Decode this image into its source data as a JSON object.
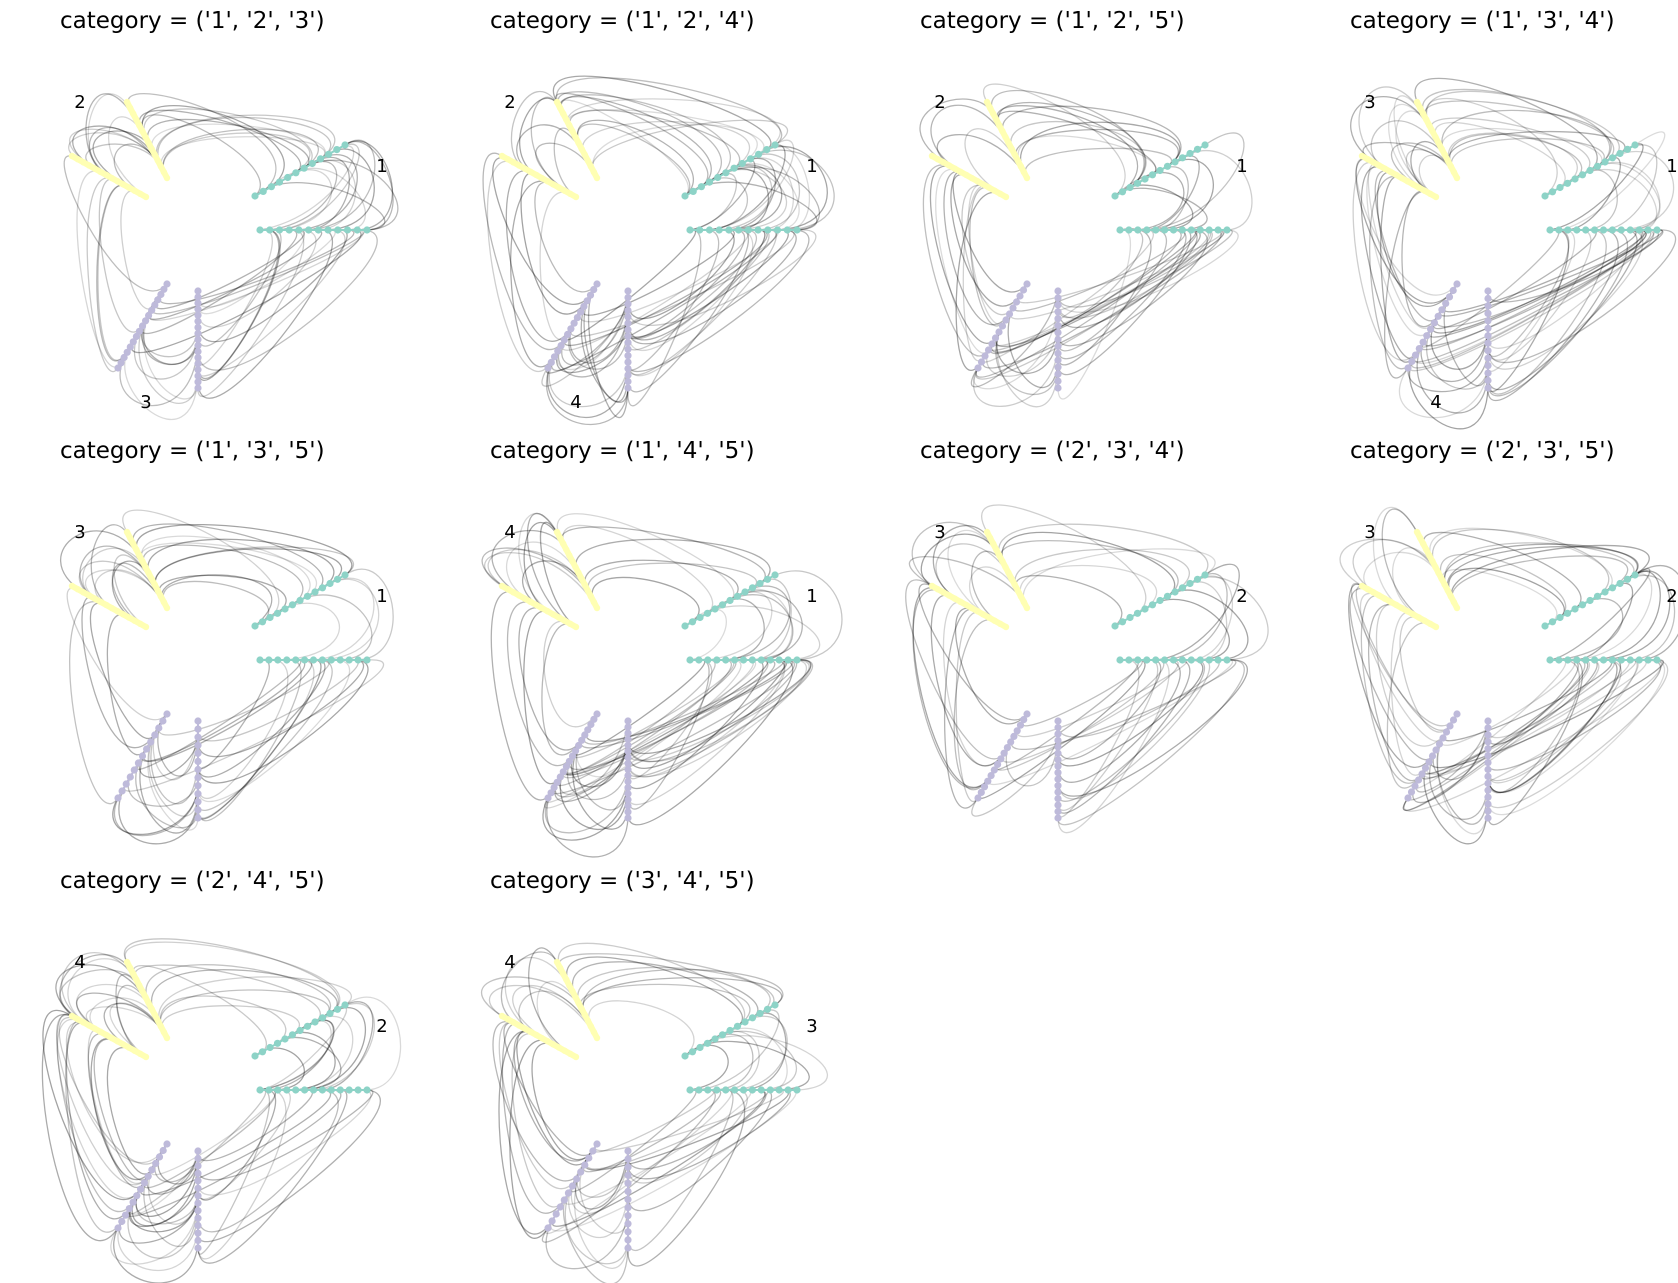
{
  "figure": {
    "columns": 4,
    "colors": {
      "axis_a": "#8dd3c7",
      "axis_b": "#ffffb3",
      "axis_c": "#bebada",
      "edge": "#000000"
    },
    "panels": [
      {
        "title": "category = ('1', '2', '3')",
        "labels": [
          "1",
          "2",
          "3"
        ]
      },
      {
        "title": "category = ('1', '2', '4')",
        "labels": [
          "1",
          "2",
          "4"
        ]
      },
      {
        "title": "category = ('1', '2', '5')",
        "labels": [
          "1",
          "2",
          ""
        ]
      },
      {
        "title": "category = ('1', '3', '4')",
        "labels": [
          "1",
          "3",
          "4"
        ]
      },
      {
        "title": "category = ('1', '3', '5')",
        "labels": [
          "1",
          "3",
          ""
        ]
      },
      {
        "title": "category = ('1', '4', '5')",
        "labels": [
          "1",
          "4",
          ""
        ]
      },
      {
        "title": "category = ('2', '3', '4')",
        "labels": [
          "2",
          "3",
          ""
        ]
      },
      {
        "title": "category = ('2', '3', '5')",
        "labels": [
          "2",
          "3",
          ""
        ]
      },
      {
        "title": "category = ('2', '4', '5')",
        "labels": [
          "2",
          "4",
          ""
        ]
      },
      {
        "title": "category = ('3', '4', '5')",
        "labels": [
          "3",
          "4",
          ""
        ]
      }
    ]
  }
}
